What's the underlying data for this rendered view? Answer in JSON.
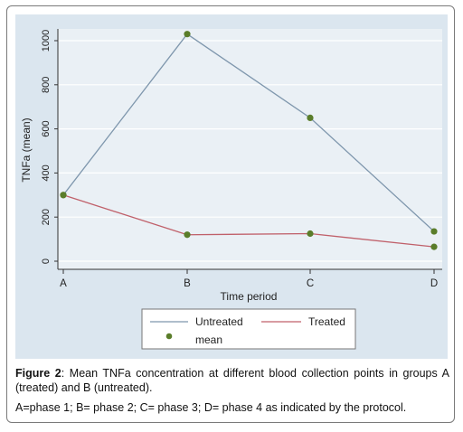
{
  "chart_data": {
    "type": "line",
    "categories": [
      "A",
      "B",
      "C",
      "D"
    ],
    "xlabel": "Time period",
    "ylabel": "TNFa (mean)",
    "ylim": [
      0,
      1000
    ],
    "yticks": [
      0,
      200,
      400,
      600,
      800,
      1000
    ],
    "series": [
      {
        "name": "Untreated",
        "values": [
          300,
          1030,
          650,
          135
        ],
        "color": "#7f97ad"
      },
      {
        "name": "Treated",
        "values": [
          300,
          120,
          125,
          65
        ],
        "color": "#c0606a"
      }
    ],
    "marker_label": "mean",
    "marker_color": "#5a7d2a",
    "grid": true,
    "legend_position": "bottom"
  },
  "caption": {
    "figure_label": "Figure 2",
    "figure_text": ": Mean TNFa concentration at different blood collection points in groups A (treated) and B (untreated).",
    "note": "A=phase 1; B= phase 2; C= phase 3; D= phase 4 as indicated by the protocol."
  }
}
